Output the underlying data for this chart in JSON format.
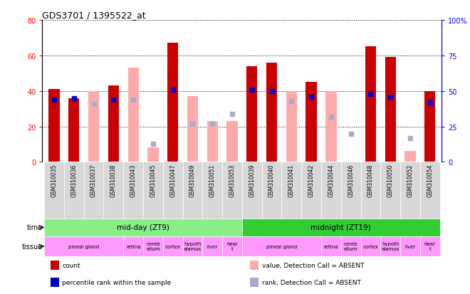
{
  "title": "GDS3701 / 1395522_at",
  "samples": [
    "GSM310035",
    "GSM310036",
    "GSM310037",
    "GSM310038",
    "GSM310043",
    "GSM310045",
    "GSM310047",
    "GSM310049",
    "GSM310051",
    "GSM310053",
    "GSM310039",
    "GSM310040",
    "GSM310041",
    "GSM310042",
    "GSM310044",
    "GSM310046",
    "GSM310048",
    "GSM310050",
    "GSM310052",
    "GSM310054"
  ],
  "count_values": [
    41,
    36,
    null,
    43,
    null,
    null,
    67,
    null,
    null,
    null,
    54,
    56,
    null,
    45,
    null,
    null,
    65,
    59,
    null,
    40
  ],
  "percentile_values": [
    44,
    45,
    null,
    44,
    null,
    null,
    51,
    null,
    null,
    null,
    51,
    50,
    null,
    46,
    null,
    null,
    48,
    46,
    null,
    42
  ],
  "absent_value_values": [
    null,
    null,
    40,
    null,
    53,
    8,
    null,
    37,
    23,
    23,
    null,
    null,
    40,
    null,
    40,
    null,
    null,
    null,
    6,
    null
  ],
  "absent_rank_values": [
    null,
    null,
    41,
    null,
    44,
    13,
    null,
    27,
    27,
    34,
    null,
    null,
    43,
    null,
    32,
    20,
    null,
    null,
    17,
    null
  ],
  "ylim_left": [
    0,
    80
  ],
  "ylim_right": [
    0,
    100
  ],
  "yticks_left": [
    0,
    20,
    40,
    60,
    80
  ],
  "yticks_right": [
    0,
    25,
    50,
    75,
    100
  ],
  "bar_width": 0.55,
  "count_color": "#cc0000",
  "percentile_color": "#0000cc",
  "absent_value_color": "#ffaaaa",
  "absent_rank_color": "#aaaacc",
  "grid_color": "#000000",
  "bg_color": "#ffffff",
  "time_blocks": [
    {
      "label": "mid-day (ZT9)",
      "start": 0,
      "end": 10,
      "color": "#88ee88"
    },
    {
      "label": "midnight (ZT19)",
      "start": 10,
      "end": 20,
      "color": "#33cc33"
    }
  ],
  "tissue_blocks": [
    {
      "label": "pineal gland",
      "start": 0,
      "end": 4
    },
    {
      "label": "retina",
      "start": 4,
      "end": 5
    },
    {
      "label": "cereb\nellum",
      "start": 5,
      "end": 6
    },
    {
      "label": "cortex",
      "start": 6,
      "end": 7
    },
    {
      "label": "hypoth\nalamus",
      "start": 7,
      "end": 8
    },
    {
      "label": "liver",
      "start": 8,
      "end": 9
    },
    {
      "label": "hear\nt",
      "start": 9,
      "end": 10
    },
    {
      "label": "pineal gland",
      "start": 10,
      "end": 14
    },
    {
      "label": "retina",
      "start": 14,
      "end": 15
    },
    {
      "label": "cereb\nellum",
      "start": 15,
      "end": 16
    },
    {
      "label": "cortex",
      "start": 16,
      "end": 17
    },
    {
      "label": "hypoth\nalamus",
      "start": 17,
      "end": 18
    },
    {
      "label": "liver",
      "start": 18,
      "end": 19
    },
    {
      "label": "hear\nt",
      "start": 19,
      "end": 20
    }
  ],
  "tissue_color": "#ff99ff",
  "legend_items": [
    {
      "color": "#cc0000",
      "label": "count",
      "marker": "rect"
    },
    {
      "color": "#0000cc",
      "label": "percentile rank within the sample",
      "marker": "rect"
    },
    {
      "color": "#ffaaaa",
      "label": "value, Detection Call = ABSENT",
      "marker": "rect"
    },
    {
      "color": "#aaaacc",
      "label": "rank, Detection Call = ABSENT",
      "marker": "rect"
    }
  ]
}
